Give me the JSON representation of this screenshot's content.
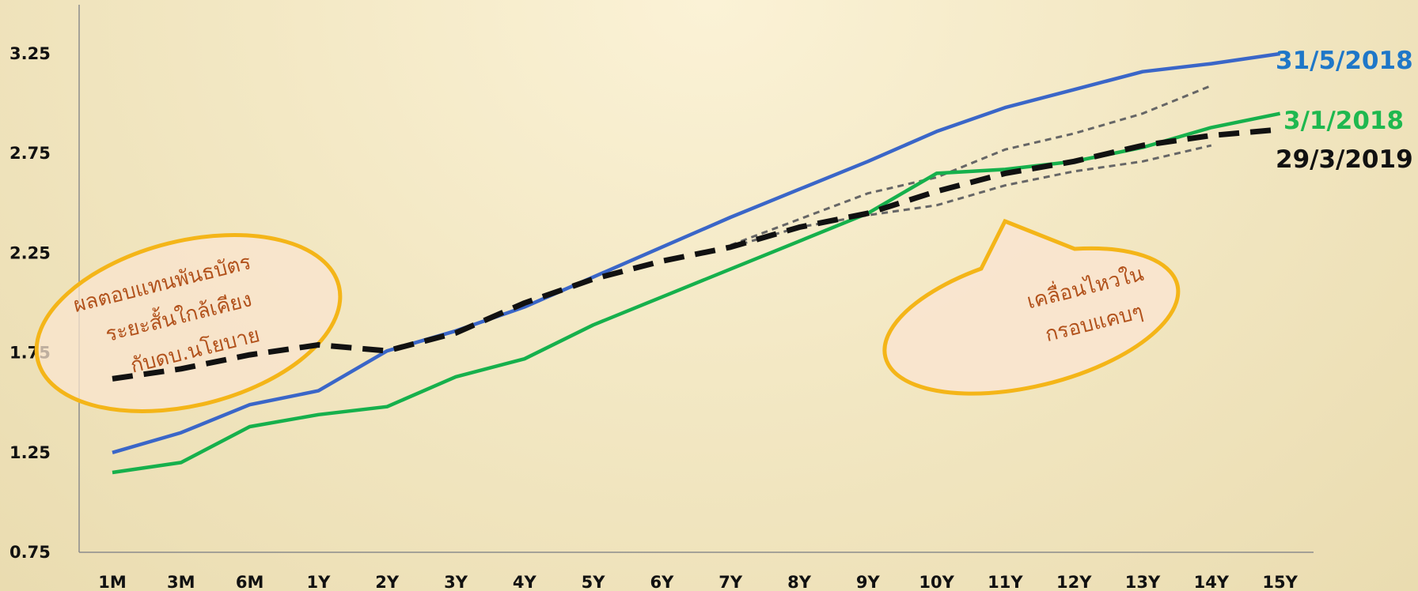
{
  "chart_data": {
    "type": "line",
    "x": [
      "1M",
      "3M",
      "6M",
      "1Y",
      "2Y",
      "3Y",
      "4Y",
      "5Y",
      "6Y",
      "7Y",
      "8Y",
      "9Y",
      "10Y",
      "11Y",
      "12Y",
      "13Y",
      "14Y",
      "15Y"
    ],
    "y_ticks": [
      "0.75",
      "1.25",
      "1.75",
      "2.25",
      "2.75",
      "3.25"
    ],
    "ylim": [
      0.75,
      3.25
    ],
    "grid": false,
    "legend": "labels at right end of lines",
    "series": [
      {
        "name": "31/5/2018",
        "color": "#3a66c8",
        "label_color": "#1f77c8",
        "style": "solid",
        "values": [
          1.25,
          1.35,
          1.49,
          1.56,
          1.76,
          1.86,
          1.98,
          2.13,
          2.28,
          2.43,
          2.57,
          2.71,
          2.86,
          2.98,
          3.07,
          3.16,
          3.2,
          3.25
        ]
      },
      {
        "name": "3/1/2018",
        "color": "#16b04c",
        "label_color": "#1fb84f",
        "style": "solid",
        "values": [
          1.15,
          1.2,
          1.38,
          1.44,
          1.48,
          1.63,
          1.72,
          1.89,
          2.03,
          2.17,
          2.31,
          2.45,
          2.65,
          2.67,
          2.71,
          2.78,
          2.88,
          2.95
        ]
      },
      {
        "name": "29/3/2019",
        "color": "#111111",
        "label_color": "#111111",
        "style": "dashed",
        "values": [
          1.62,
          1.67,
          1.74,
          1.79,
          1.76,
          1.85,
          2.0,
          2.12,
          2.21,
          2.28,
          2.38,
          2.45,
          2.56,
          2.65,
          2.71,
          2.79,
          2.84,
          2.87
        ]
      }
    ],
    "bands": {
      "color": "#666666",
      "start_index": 9,
      "upper": [
        2.29,
        2.42,
        2.55,
        2.63,
        2.77,
        2.85,
        2.95,
        3.09
      ],
      "lower": [
        2.28,
        2.38,
        2.44,
        2.49,
        2.59,
        2.66,
        2.71,
        2.79
      ]
    },
    "annotations": [
      {
        "id": "short-term",
        "lines": [
          "ผลตอบแทนพันธบัตร",
          "ระยะสั้นใกล้เคียง",
          "กับดบ.นโยบาย"
        ]
      },
      {
        "id": "narrow-range",
        "lines": [
          "เคลื่อนไหวใน",
          "กรอบแคบๆ"
        ]
      }
    ]
  }
}
